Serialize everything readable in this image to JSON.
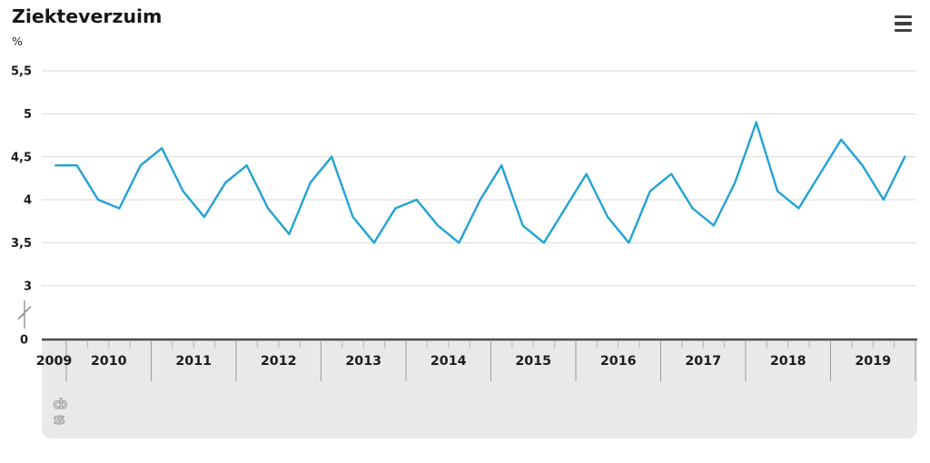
{
  "header": {
    "title": "Ziekteverzuim",
    "menu_tooltip": "menu"
  },
  "axes": {
    "unit_label": "%",
    "y_tick_labels": [
      "5,5",
      "5",
      "4,5",
      "4",
      "3,5",
      "3"
    ],
    "y_tick_values": [
      5.5,
      5,
      4.5,
      4,
      3.5,
      3
    ],
    "y_zero_label": "0",
    "has_axis_break": true,
    "x_year_labels": [
      "2009",
      "2010",
      "2011",
      "2012",
      "2013",
      "2014",
      "2015",
      "2016",
      "2017",
      "2018",
      "2019"
    ]
  },
  "colors": {
    "line": "#22a2d4",
    "grid": "#d9d9d9",
    "axis": "#4d4d4d",
    "panel": "#e9e9e9",
    "quarter_tick": "#b5b5b5",
    "year_tick": "#9c9c9c",
    "text": "#1a1a1a",
    "logo": "#9a9a9a",
    "menu_icon": "#3f3f3f"
  },
  "footer": {
    "logo_text_top": "cb",
    "logo_text_bottom": "s"
  },
  "chart_data": {
    "type": "line",
    "title": "Ziekteverzuim",
    "ylabel": "%",
    "frequency": "quarterly",
    "grid": "horizontal",
    "legend": "none",
    "ylim_shown": [
      3,
      5.5
    ],
    "axis_break_between": [
      0,
      3
    ],
    "y_ticks": [
      0,
      3,
      3.5,
      4,
      4.5,
      5,
      5.5
    ],
    "x_range": "2009 Q4 - 2019 Q4",
    "series": [
      {
        "name": "Ziekteverzuim",
        "color": "#22a2d4",
        "periods": [
          "2009 Q4",
          "2010 Q1",
          "2010 Q2",
          "2010 Q3",
          "2010 Q4",
          "2011 Q1",
          "2011 Q2",
          "2011 Q3",
          "2011 Q4",
          "2012 Q1",
          "2012 Q2",
          "2012 Q3",
          "2012 Q4",
          "2013 Q1",
          "2013 Q2",
          "2013 Q3",
          "2013 Q4",
          "2014 Q1",
          "2014 Q2",
          "2014 Q3",
          "2014 Q4",
          "2015 Q1",
          "2015 Q2",
          "2015 Q3",
          "2015 Q4",
          "2016 Q1",
          "2016 Q2",
          "2016 Q3",
          "2016 Q4",
          "2017 Q1",
          "2017 Q2",
          "2017 Q3",
          "2017 Q4",
          "2018 Q1",
          "2018 Q2",
          "2018 Q3",
          "2018 Q4",
          "2019 Q1",
          "2019 Q2",
          "2019 Q3",
          "2019 Q4"
        ],
        "values": [
          4.4,
          4.4,
          4.0,
          3.9,
          4.4,
          4.6,
          4.1,
          3.8,
          4.2,
          4.4,
          3.9,
          3.6,
          4.2,
          4.5,
          3.8,
          3.5,
          3.9,
          4.0,
          3.7,
          3.5,
          4.0,
          4.4,
          3.7,
          3.5,
          3.9,
          4.3,
          3.8,
          3.5,
          4.1,
          4.3,
          3.9,
          3.7,
          4.2,
          4.9,
          4.1,
          3.9,
          4.3,
          4.7,
          4.4,
          4.0,
          4.5
        ]
      }
    ]
  }
}
